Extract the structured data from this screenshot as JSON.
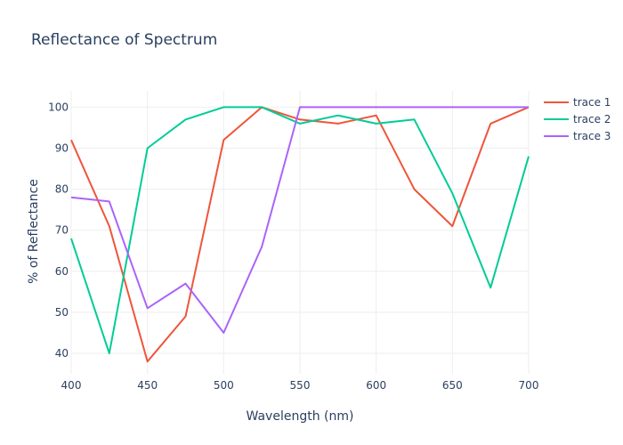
{
  "chart_data": {
    "type": "line",
    "title": "Reflectance of Spectrum",
    "xlabel": "Wavelength (nm)",
    "ylabel": "% of Reflectance",
    "xlim": [
      400,
      700
    ],
    "ylim": [
      35,
      104
    ],
    "x_ticks": [
      400,
      450,
      500,
      550,
      600,
      650,
      700
    ],
    "y_ticks": [
      40,
      50,
      60,
      70,
      80,
      90,
      100
    ],
    "grid": true,
    "legend_position": "top-right",
    "x": [
      400,
      425,
      450,
      475,
      500,
      525,
      550,
      575,
      600,
      625,
      650,
      675,
      700
    ],
    "series": [
      {
        "name": "trace 1",
        "color": "#EF553B",
        "values": [
          92,
          71,
          38,
          49,
          92,
          100,
          97,
          96,
          98,
          80,
          71,
          96,
          100
        ]
      },
      {
        "name": "trace 2",
        "color": "#00CC96",
        "values": [
          68,
          40,
          90,
          97,
          100,
          100,
          96,
          98,
          96,
          97,
          79,
          56,
          88
        ]
      },
      {
        "name": "trace 3",
        "color": "#AB63FA",
        "values": [
          78,
          77,
          51,
          57,
          45,
          66,
          100,
          100,
          100,
          100,
          100,
          100,
          100
        ]
      }
    ]
  }
}
